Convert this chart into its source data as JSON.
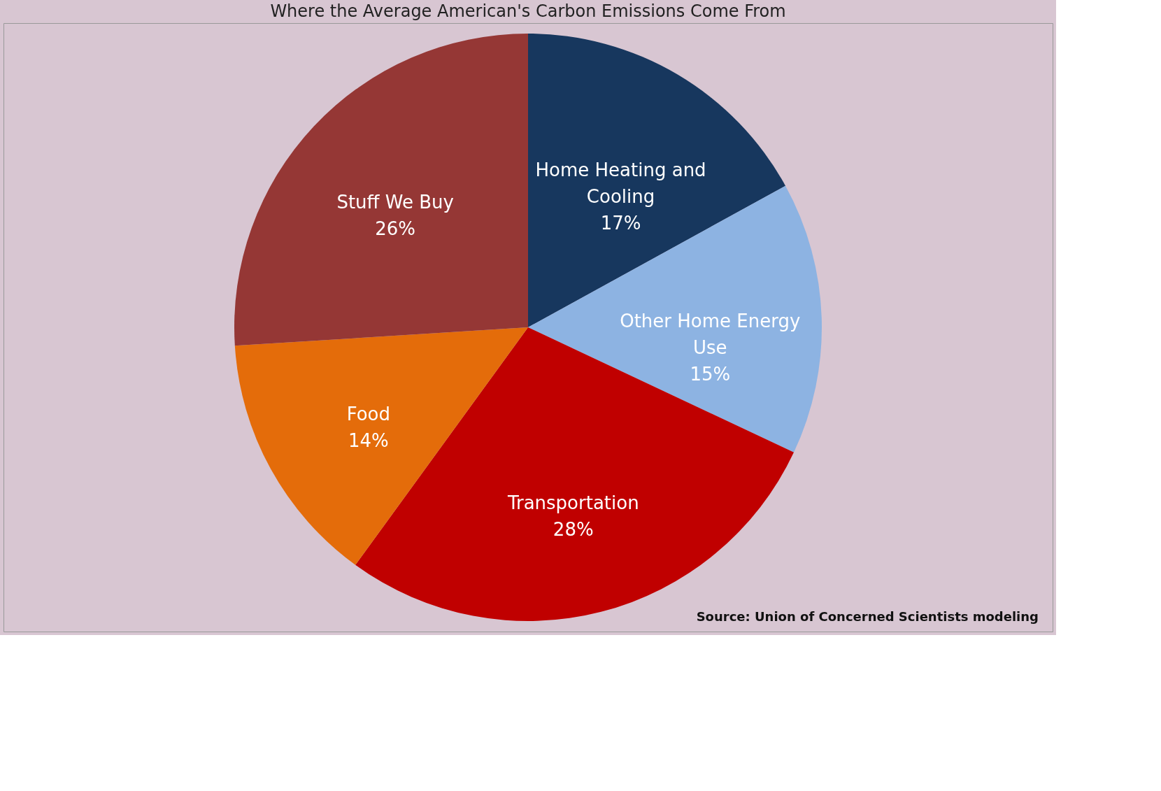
{
  "chart_data": {
    "type": "pie",
    "title": "Where the Average American's Carbon Emissions Come From",
    "categories": [
      "Home Heating and Cooling",
      "Other Home Energy Use",
      "Transportation",
      "Food",
      "Stuff We Buy"
    ],
    "values": [
      17,
      15,
      28,
      14,
      26
    ],
    "value_labels": [
      "17%",
      "15%",
      "28%",
      "14%",
      "26%"
    ],
    "colors": [
      "#17375e",
      "#8db3e2",
      "#c00000",
      "#e46c0a",
      "#953735"
    ],
    "annotations": [
      "Source:  Union of Concerned Scientists modeling"
    ],
    "legend": false
  }
}
